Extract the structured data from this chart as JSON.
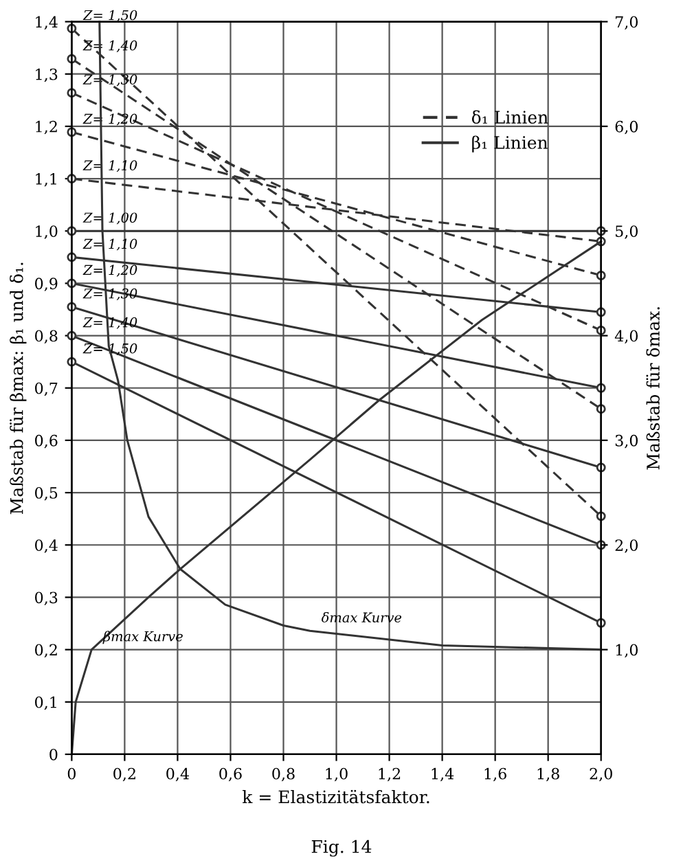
{
  "chart_data": {
    "type": "line",
    "xlabel": "k = Elastizitätsfaktor.",
    "ylabel": "Maßstab für βmax: β₁ und δ₁.",
    "y2label": "Maßstab für δmax.",
    "xlim": [
      0,
      2.0
    ],
    "xticks": [
      0,
      {
        "value": 0.2,
        "label": "0,2"
      },
      {
        "value": 0.4,
        "label": "0,4"
      },
      {
        "value": 0.6,
        "label": "0,6"
      },
      {
        "value": 0.8,
        "label": "0,8"
      },
      {
        "value": 1.0,
        "label": "1,0"
      },
      {
        "value": 1.2,
        "label": "1,2"
      },
      {
        "value": 1.4,
        "label": "1,4"
      },
      {
        "value": 1.6,
        "label": "1,6"
      },
      {
        "value": 1.8,
        "label": "1,8"
      },
      {
        "value": 2.0,
        "label": "2,0"
      }
    ],
    "ylim": [
      0,
      1.4
    ],
    "yticks": [
      0,
      {
        "value": 0.1,
        "label": "0,1"
      },
      {
        "value": 0.2,
        "label": "0,2"
      },
      {
        "value": 0.3,
        "label": "0,3"
      },
      {
        "value": 0.4,
        "label": "0,4"
      },
      {
        "value": 0.5,
        "label": "0,5"
      },
      {
        "value": 0.6,
        "label": "0,6"
      },
      {
        "value": 0.7,
        "label": "0,7"
      },
      {
        "value": 0.8,
        "label": "0,8"
      },
      {
        "value": 0.9,
        "label": "0,9"
      },
      {
        "value": 1.0,
        "label": "1,0"
      },
      {
        "value": 1.1,
        "label": "1,1"
      },
      {
        "value": 1.2,
        "label": "1,2"
      },
      {
        "value": 1.3,
        "label": "1,3"
      },
      {
        "value": 1.4,
        "label": "1,4"
      }
    ],
    "y2lim": [
      0,
      7.0
    ],
    "y2ticks": [
      {
        "value": 1.0,
        "label": "1,0"
      },
      {
        "value": 2.0,
        "label": "2,0"
      },
      {
        "value": 3.0,
        "label": "3,0"
      },
      {
        "value": 4.0,
        "label": "4,0"
      },
      {
        "value": 5.0,
        "label": "5,0"
      },
      {
        "value": 6.0,
        "label": "6,0"
      },
      {
        "value": 7.0,
        "label": "7,0"
      }
    ],
    "grid": true,
    "legend": "top right",
    "series": [
      {
        "name": "δ₁ Linien",
        "color": "#333333",
        "line_style": "dashed",
        "marker": "circle",
        "x": [
          0,
          2.0
        ],
        "values": [
          1.1,
          0.98
        ]
      },
      {
        "color": "#333333",
        "line_style": "dashed",
        "marker": "circle",
        "x": [
          0,
          2.0
        ],
        "values": [
          1.189,
          0.915
        ]
      },
      {
        "color": "#333333",
        "line_style": "dashed",
        "marker": "circle",
        "x": [
          0,
          2.0
        ],
        "values": [
          1.264,
          0.81
        ]
      },
      {
        "color": "#333333",
        "line_style": "dashed",
        "marker": "circle",
        "x": [
          0,
          2.0
        ],
        "values": [
          1.329,
          0.66
        ]
      },
      {
        "color": "#333333",
        "line_style": "dashed",
        "marker": "circle",
        "x": [
          0,
          2.0
        ],
        "values": [
          1.387,
          0.455
        ]
      },
      {
        "name": "β₁ Linien",
        "color": "#333333",
        "line_style": "solid",
        "marker": "circle",
        "x": [
          0,
          2.0
        ],
        "values": [
          1.0,
          1.0
        ]
      },
      {
        "color": "#333333",
        "line_style": "solid",
        "marker": "circle",
        "x": [
          0,
          2.0
        ],
        "values": [
          0.95,
          0.845
        ]
      },
      {
        "color": "#333333",
        "line_style": "solid",
        "marker": "circle",
        "x": [
          0,
          2.0
        ],
        "values": [
          0.9,
          0.7
        ]
      },
      {
        "color": "#333333",
        "line_style": "solid",
        "marker": "circle",
        "x": [
          0,
          2.0
        ],
        "values": [
          0.855,
          0.548
        ]
      },
      {
        "color": "#333333",
        "line_style": "solid",
        "marker": "circle",
        "x": [
          0,
          2.0
        ],
        "values": [
          0.8,
          0.4
        ]
      },
      {
        "color": "#333333",
        "line_style": "solid",
        "marker": "circle",
        "x": [
          0,
          2.0
        ],
        "values": [
          0.75,
          0.251
        ]
      },
      {
        "color": "#333333",
        "line_style": "solid",
        "marker": "none",
        "x": [
          0,
          0.015,
          0.075,
          0.29,
          0.41,
          0.9,
          1.16,
          1.55,
          2.0
        ],
        "values": [
          0,
          0.1,
          0.2,
          0.3,
          0.354,
          0.563,
          0.676,
          0.83,
          0.98
        ]
      },
      {
        "color": "#333333",
        "line_style": "solid",
        "marker": "none",
        "axis": "y2",
        "x": [
          0.105,
          0.116,
          0.14,
          0.175,
          0.21,
          0.29,
          0.41,
          0.58,
          0.8,
          0.9,
          1.4,
          2.0
        ],
        "values": [
          7.0,
          5.0,
          3.9,
          3.57,
          3.0,
          2.27,
          1.77,
          1.43,
          1.23,
          1.18,
          1.04,
          1.0
        ]
      }
    ],
    "annotations": [
      {
        "text": "Z= 1,50",
        "x": 0,
        "y": 1.387
      },
      {
        "text": "Z= 1,40",
        "x": 0,
        "y": 1.329
      },
      {
        "text": "Z= 1,30",
        "x": 0,
        "y": 1.264
      },
      {
        "text": "Z= 1,20",
        "x": 0,
        "y": 1.189
      },
      {
        "text": "Z= 1,10",
        "x": 0,
        "y": 1.1
      },
      {
        "text": "Z= 1,00",
        "x": 0,
        "y": 1.0
      },
      {
        "text": "Z= 1,10",
        "x": 0,
        "y": 0.95
      },
      {
        "text": "Z= 1,20",
        "x": 0,
        "y": 0.9
      },
      {
        "text": "Z= 1,30",
        "x": 0,
        "y": 0.855
      },
      {
        "text": "Z= 1,40",
        "x": 0,
        "y": 0.8
      },
      {
        "text": "Z= 1,50",
        "x": 0,
        "y": 0.75
      },
      {
        "text": "βmax Kurve",
        "x": 0.075,
        "y": 0.2
      },
      {
        "text": "δmax Kurve",
        "x": 0.9,
        "y": 0.236
      },
      "Fig. 14"
    ]
  }
}
